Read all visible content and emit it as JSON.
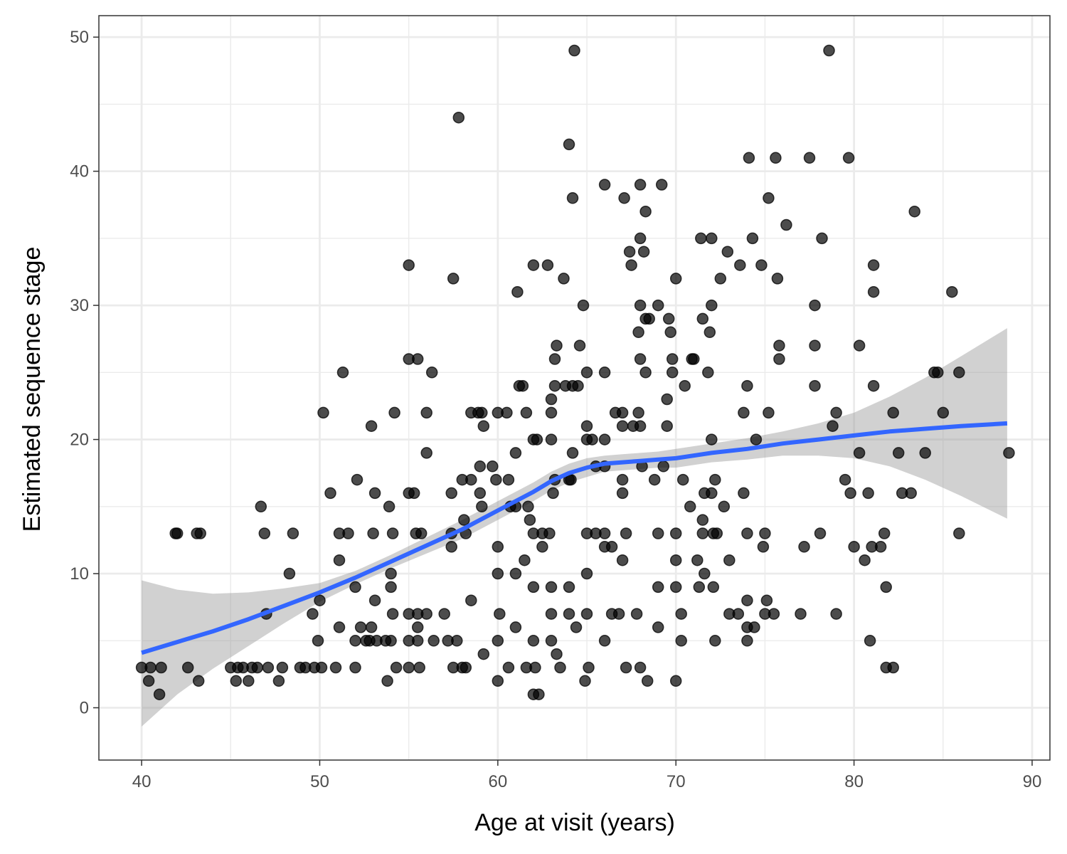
{
  "chart_data": {
    "type": "scatter",
    "title": "",
    "xlabel": "Age at visit (years)",
    "ylabel": "Estimated sequence stage",
    "xlim": [
      37.6,
      91.0
    ],
    "ylim": [
      -3.9,
      51.6
    ],
    "x_ticks": [
      40,
      50,
      60,
      70,
      80,
      90
    ],
    "y_ticks": [
      0,
      10,
      20,
      30,
      40,
      50
    ],
    "x_tick_labels": [
      "40",
      "50",
      "60",
      "70",
      "80",
      "90"
    ],
    "y_tick_labels": [
      "0",
      "10",
      "20",
      "30",
      "40",
      "50"
    ],
    "grid": true,
    "legend": "none",
    "colors": {
      "points": "#000000",
      "smooth_line": "#3366ff",
      "ribbon": "#999999",
      "grid": "#ebebeb",
      "frame": "#333333"
    },
    "points": [
      [
        40.0,
        3
      ],
      [
        40.4,
        2
      ],
      [
        40.5,
        3
      ],
      [
        41.0,
        1
      ],
      [
        41.1,
        3
      ],
      [
        41.9,
        13
      ],
      [
        42.0,
        13
      ],
      [
        42.6,
        3
      ],
      [
        43.1,
        13
      ],
      [
        43.3,
        13
      ],
      [
        43.2,
        2
      ],
      [
        45.0,
        3
      ],
      [
        45.3,
        2
      ],
      [
        45.4,
        3
      ],
      [
        45.7,
        3
      ],
      [
        46.0,
        2
      ],
      [
        46.2,
        3
      ],
      [
        46.5,
        3
      ],
      [
        46.7,
        15
      ],
      [
        46.9,
        13
      ],
      [
        47.0,
        7
      ],
      [
        47.1,
        3
      ],
      [
        47.7,
        2
      ],
      [
        47.9,
        3
      ],
      [
        48.3,
        10
      ],
      [
        48.5,
        13
      ],
      [
        48.9,
        3
      ],
      [
        49.2,
        3
      ],
      [
        49.6,
        7
      ],
      [
        49.7,
        3
      ],
      [
        49.9,
        5
      ],
      [
        50.0,
        8
      ],
      [
        50.1,
        3
      ],
      [
        50.2,
        22
      ],
      [
        50.6,
        16
      ],
      [
        50.9,
        3
      ],
      [
        51.1,
        13
      ],
      [
        51.1,
        6
      ],
      [
        51.1,
        11
      ],
      [
        51.3,
        25
      ],
      [
        51.6,
        13
      ],
      [
        52.0,
        9
      ],
      [
        52.0,
        3
      ],
      [
        52.0,
        5
      ],
      [
        52.1,
        17
      ],
      [
        52.3,
        6
      ],
      [
        52.6,
        5
      ],
      [
        52.8,
        5
      ],
      [
        52.9,
        21
      ],
      [
        52.9,
        6
      ],
      [
        53.0,
        13
      ],
      [
        53.1,
        16
      ],
      [
        53.1,
        8
      ],
      [
        53.2,
        5
      ],
      [
        53.7,
        5
      ],
      [
        53.8,
        2
      ],
      [
        53.9,
        15
      ],
      [
        54.0,
        5
      ],
      [
        54.0,
        10
      ],
      [
        54.0,
        9
      ],
      [
        54.1,
        13
      ],
      [
        54.1,
        7
      ],
      [
        54.2,
        22
      ],
      [
        54.3,
        3
      ],
      [
        55.0,
        33
      ],
      [
        55.0,
        26
      ],
      [
        55.0,
        16
      ],
      [
        55.0,
        7
      ],
      [
        55.0,
        5
      ],
      [
        55.0,
        3
      ],
      [
        55.3,
        16
      ],
      [
        55.4,
        13
      ],
      [
        55.5,
        26
      ],
      [
        55.5,
        7
      ],
      [
        55.5,
        6
      ],
      [
        55.5,
        5
      ],
      [
        55.6,
        3
      ],
      [
        55.7,
        13
      ],
      [
        56.0,
        22
      ],
      [
        56.0,
        19
      ],
      [
        56.0,
        7
      ],
      [
        56.3,
        25
      ],
      [
        56.4,
        5
      ],
      [
        57.0,
        7
      ],
      [
        57.2,
        5
      ],
      [
        57.4,
        16
      ],
      [
        57.4,
        12
      ],
      [
        57.4,
        13
      ],
      [
        57.5,
        32
      ],
      [
        57.5,
        3
      ],
      [
        57.7,
        5
      ],
      [
        57.8,
        44
      ],
      [
        58.0,
        17
      ],
      [
        58.0,
        3
      ],
      [
        58.1,
        14
      ],
      [
        58.2,
        3
      ],
      [
        58.2,
        13
      ],
      [
        58.5,
        8
      ],
      [
        58.5,
        22
      ],
      [
        58.5,
        17
      ],
      [
        58.9,
        22
      ],
      [
        59.0,
        18
      ],
      [
        59.0,
        16
      ],
      [
        59.1,
        22
      ],
      [
        59.1,
        15
      ],
      [
        59.2,
        21
      ],
      [
        59.2,
        4
      ],
      [
        59.7,
        18
      ],
      [
        59.9,
        17
      ],
      [
        60.0,
        22
      ],
      [
        60.0,
        12
      ],
      [
        60.0,
        10
      ],
      [
        60.0,
        5
      ],
      [
        60.0,
        2
      ],
      [
        60.1,
        7
      ],
      [
        60.5,
        22
      ],
      [
        60.6,
        17
      ],
      [
        60.6,
        3
      ],
      [
        60.7,
        15
      ],
      [
        61.0,
        10
      ],
      [
        61.0,
        6
      ],
      [
        61.0,
        15
      ],
      [
        61.0,
        19
      ],
      [
        61.1,
        31
      ],
      [
        61.2,
        24
      ],
      [
        61.4,
        24
      ],
      [
        61.5,
        11
      ],
      [
        61.6,
        3
      ],
      [
        61.6,
        22
      ],
      [
        61.7,
        15
      ],
      [
        61.8,
        14
      ],
      [
        62.0,
        13
      ],
      [
        62.0,
        20
      ],
      [
        62.0,
        5
      ],
      [
        62.0,
        9
      ],
      [
        62.0,
        33
      ],
      [
        62.0,
        1
      ],
      [
        62.1,
        3
      ],
      [
        62.2,
        20
      ],
      [
        62.3,
        1
      ],
      [
        62.5,
        12
      ],
      [
        62.5,
        13
      ],
      [
        62.8,
        33
      ],
      [
        62.9,
        13
      ],
      [
        63.0,
        7
      ],
      [
        63.0,
        9
      ],
      [
        63.0,
        20
      ],
      [
        63.0,
        22
      ],
      [
        63.0,
        23
      ],
      [
        63.0,
        5
      ],
      [
        63.1,
        16
      ],
      [
        63.2,
        26
      ],
      [
        63.2,
        17
      ],
      [
        63.2,
        24
      ],
      [
        63.3,
        4
      ],
      [
        63.3,
        27
      ],
      [
        63.5,
        3
      ],
      [
        63.7,
        32
      ],
      [
        63.8,
        24
      ],
      [
        64.0,
        7
      ],
      [
        64.0,
        9
      ],
      [
        64.0,
        42
      ],
      [
        64.0,
        17
      ],
      [
        64.1,
        17
      ],
      [
        64.2,
        19
      ],
      [
        64.2,
        38
      ],
      [
        64.2,
        24
      ],
      [
        64.3,
        49
      ],
      [
        64.4,
        6
      ],
      [
        64.5,
        24
      ],
      [
        64.6,
        27
      ],
      [
        64.8,
        30
      ],
      [
        64.9,
        2
      ],
      [
        65.0,
        25
      ],
      [
        65.0,
        21
      ],
      [
        65.0,
        20
      ],
      [
        65.0,
        13
      ],
      [
        65.0,
        10
      ],
      [
        65.0,
        7
      ],
      [
        65.1,
        3
      ],
      [
        65.3,
        20
      ],
      [
        65.5,
        18
      ],
      [
        65.5,
        13
      ],
      [
        66.0,
        39
      ],
      [
        66.0,
        25
      ],
      [
        66.0,
        20
      ],
      [
        66.0,
        5
      ],
      [
        66.0,
        12
      ],
      [
        66.0,
        13
      ],
      [
        66.0,
        18
      ],
      [
        66.4,
        12
      ],
      [
        66.4,
        7
      ],
      [
        66.6,
        22
      ],
      [
        66.8,
        7
      ],
      [
        67.0,
        11
      ],
      [
        67.0,
        16
      ],
      [
        67.0,
        17
      ],
      [
        67.0,
        21
      ],
      [
        67.0,
        22
      ],
      [
        67.1,
        38
      ],
      [
        67.2,
        13
      ],
      [
        67.2,
        3
      ],
      [
        67.4,
        34
      ],
      [
        67.5,
        33
      ],
      [
        67.6,
        21
      ],
      [
        67.8,
        7
      ],
      [
        67.9,
        22
      ],
      [
        67.9,
        28
      ],
      [
        68.0,
        39
      ],
      [
        68.0,
        35
      ],
      [
        68.0,
        30
      ],
      [
        68.0,
        26
      ],
      [
        68.0,
        21
      ],
      [
        68.0,
        3
      ],
      [
        68.1,
        18
      ],
      [
        68.2,
        34
      ],
      [
        68.3,
        29
      ],
      [
        68.3,
        25
      ],
      [
        68.4,
        2
      ],
      [
        68.3,
        37
      ],
      [
        68.5,
        29
      ],
      [
        68.8,
        17
      ],
      [
        69.0,
        30
      ],
      [
        69.0,
        13
      ],
      [
        69.0,
        9
      ],
      [
        69.0,
        6
      ],
      [
        69.2,
        39
      ],
      [
        69.3,
        18
      ],
      [
        69.5,
        23
      ],
      [
        69.5,
        21
      ],
      [
        69.6,
        29
      ],
      [
        69.7,
        28
      ],
      [
        69.8,
        26
      ],
      [
        69.8,
        25
      ],
      [
        70.0,
        32
      ],
      [
        70.0,
        2
      ],
      [
        70.0,
        13
      ],
      [
        70.0,
        11
      ],
      [
        70.0,
        9
      ],
      [
        70.3,
        7
      ],
      [
        70.3,
        5
      ],
      [
        70.4,
        17
      ],
      [
        70.5,
        24
      ],
      [
        70.8,
        15
      ],
      [
        70.9,
        26
      ],
      [
        71.0,
        26
      ],
      [
        71.2,
        11
      ],
      [
        71.3,
        9
      ],
      [
        71.4,
        35
      ],
      [
        71.5,
        29
      ],
      [
        71.5,
        13
      ],
      [
        71.5,
        14
      ],
      [
        71.6,
        16
      ],
      [
        71.6,
        10
      ],
      [
        71.8,
        25
      ],
      [
        71.9,
        28
      ],
      [
        72.0,
        35
      ],
      [
        72.0,
        30
      ],
      [
        72.0,
        20
      ],
      [
        72.0,
        16
      ],
      [
        72.1,
        13
      ],
      [
        72.1,
        9
      ],
      [
        72.2,
        5
      ],
      [
        72.2,
        17
      ],
      [
        72.3,
        13
      ],
      [
        72.5,
        32
      ],
      [
        72.7,
        15
      ],
      [
        72.9,
        34
      ],
      [
        73.0,
        7
      ],
      [
        73.0,
        11
      ],
      [
        73.5,
        7
      ],
      [
        73.6,
        33
      ],
      [
        73.8,
        22
      ],
      [
        73.8,
        16
      ],
      [
        74.0,
        13
      ],
      [
        74.0,
        24
      ],
      [
        74.0,
        8
      ],
      [
        74.0,
        6
      ],
      [
        74.0,
        5
      ],
      [
        74.1,
        41
      ],
      [
        74.3,
        35
      ],
      [
        74.4,
        6
      ],
      [
        74.5,
        20
      ],
      [
        74.8,
        33
      ],
      [
        74.9,
        12
      ],
      [
        75.0,
        13
      ],
      [
        75.0,
        7
      ],
      [
        75.1,
        8
      ],
      [
        75.2,
        38
      ],
      [
        75.2,
        22
      ],
      [
        75.5,
        7
      ],
      [
        75.6,
        41
      ],
      [
        75.7,
        32
      ],
      [
        75.8,
        27
      ],
      [
        75.8,
        26
      ],
      [
        76.2,
        36
      ],
      [
        77.0,
        7
      ],
      [
        77.2,
        12
      ],
      [
        77.5,
        41
      ],
      [
        77.8,
        30
      ],
      [
        77.8,
        27
      ],
      [
        77.8,
        24
      ],
      [
        78.1,
        13
      ],
      [
        78.2,
        35
      ],
      [
        78.6,
        49
      ],
      [
        78.8,
        21
      ],
      [
        79.0,
        22
      ],
      [
        79.0,
        7
      ],
      [
        79.5,
        17
      ],
      [
        79.7,
        41
      ],
      [
        79.8,
        16
      ],
      [
        80.0,
        12
      ],
      [
        80.3,
        27
      ],
      [
        80.3,
        19
      ],
      [
        80.6,
        11
      ],
      [
        80.8,
        16
      ],
      [
        80.9,
        5
      ],
      [
        81.0,
        12
      ],
      [
        81.1,
        33
      ],
      [
        81.1,
        31
      ],
      [
        81.1,
        24
      ],
      [
        81.5,
        12
      ],
      [
        81.7,
        13
      ],
      [
        81.8,
        9
      ],
      [
        81.8,
        3
      ],
      [
        82.2,
        22
      ],
      [
        82.2,
        3
      ],
      [
        82.5,
        19
      ],
      [
        82.7,
        16
      ],
      [
        83.2,
        16
      ],
      [
        83.4,
        37
      ],
      [
        84.0,
        19
      ],
      [
        84.5,
        25
      ],
      [
        84.7,
        25
      ],
      [
        85.0,
        22
      ],
      [
        85.5,
        31
      ],
      [
        85.9,
        25
      ],
      [
        85.9,
        13
      ],
      [
        88.7,
        19
      ]
    ],
    "smooth_line": {
      "x": [
        40.0,
        42.0,
        44.0,
        46.0,
        48.0,
        50.0,
        52.0,
        54.0,
        56.0,
        58.0,
        60.0,
        62.0,
        63.0,
        64.0,
        65.0,
        66.0,
        67.0,
        68.0,
        69.0,
        70.0,
        72.0,
        74.0,
        76.0,
        78.0,
        80.0,
        82.0,
        84.0,
        86.0,
        88.6
      ],
      "y": [
        4.1,
        4.9,
        5.7,
        6.6,
        7.6,
        8.6,
        9.7,
        10.9,
        12.1,
        13.3,
        14.7,
        16.1,
        16.9,
        17.5,
        17.9,
        18.2,
        18.3,
        18.4,
        18.5,
        18.6,
        19.0,
        19.3,
        19.7,
        20.0,
        20.3,
        20.6,
        20.8,
        21.0,
        21.2
      ],
      "ci_upper": [
        9.5,
        8.8,
        8.5,
        8.6,
        8.9,
        9.3,
        10.2,
        11.4,
        12.7,
        14.0,
        15.4,
        16.8,
        17.6,
        18.2,
        18.6,
        18.8,
        18.9,
        19.0,
        19.1,
        19.3,
        19.7,
        20.1,
        20.6,
        21.2,
        22.0,
        23.2,
        24.6,
        26.2,
        28.3
      ],
      "ci_lower": [
        -1.4,
        1.0,
        2.9,
        4.6,
        6.3,
        7.9,
        9.2,
        10.4,
        11.5,
        12.6,
        14.0,
        15.4,
        16.2,
        16.8,
        17.2,
        17.6,
        17.7,
        17.8,
        17.9,
        17.9,
        18.3,
        18.5,
        18.8,
        18.8,
        18.6,
        18.0,
        17.0,
        15.8,
        14.1
      ]
    }
  }
}
